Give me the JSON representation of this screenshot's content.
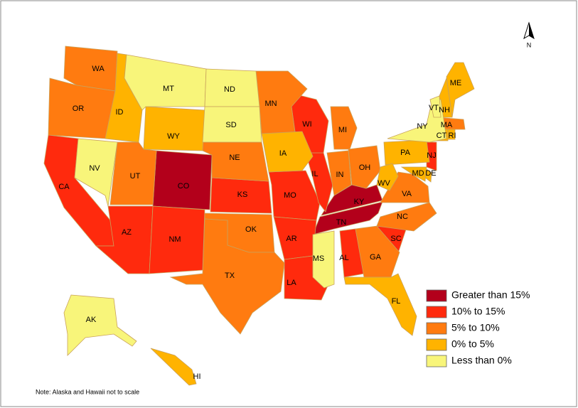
{
  "map": {
    "north": "N",
    "note": "Note: Alaska and Hawaii not to scale",
    "legend": [
      {
        "label": "Greater than 15%",
        "color": "#b3001b",
        "states": [
          "CO",
          "KY",
          "TN"
        ]
      },
      {
        "label": "10% to 15%",
        "color": "#ff2a0d",
        "states": [
          "CA",
          "AZ",
          "NM",
          "KS",
          "MO",
          "AR",
          "LA",
          "AL",
          "SC",
          "IL",
          "WI",
          "NJ"
        ]
      },
      {
        "label": "5% to 10%",
        "color": "#ff7b10",
        "states": [
          "WA",
          "OR",
          "UT",
          "NE",
          "MN",
          "OK",
          "TX",
          "MI",
          "IN",
          "OH",
          "VA",
          "NC",
          "GA",
          "MA"
        ]
      },
      {
        "label": "0% to 5%",
        "color": "#ffb300",
        "states": [
          "ID",
          "WY",
          "IA",
          "PA",
          "WV",
          "FL",
          "ME",
          "NH",
          "CT",
          "RI",
          "DE",
          "MD",
          "HI"
        ]
      },
      {
        "label": "Less than 0%",
        "color": "#f8f57a",
        "states": [
          "MT",
          "ND",
          "SD",
          "NV",
          "MS",
          "NY",
          "VT",
          "AK"
        ]
      }
    ]
  }
}
